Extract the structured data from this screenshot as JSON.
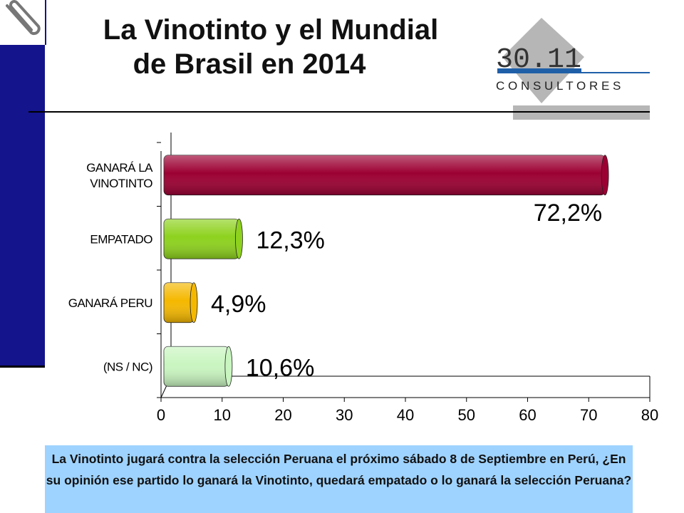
{
  "header": {
    "title_line1": "La  Vinotinto y el Mundial",
    "title_line2": "de Brasil en 2014"
  },
  "logo": {
    "number": "30.11",
    "word": "C O N S U L T O R E S",
    "icon": "paperclip-icon"
  },
  "chart_data": {
    "type": "bar",
    "orientation": "horizontal",
    "categories": [
      "GANARÁ LA VINOTINTO",
      "EMPATADO",
      "GANARÁ PERU",
      "(NS / NC)"
    ],
    "category_lines": [
      [
        "GANARÁ LA",
        "VINOTINTO"
      ],
      [
        "EMPATADO"
      ],
      [
        "GANARÁ PERU"
      ],
      [
        "(NS / NC)"
      ]
    ],
    "values": [
      72.2,
      12.3,
      4.9,
      10.6
    ],
    "value_labels": [
      "72,2%",
      "12,3%",
      "4,9%",
      "10,6%"
    ],
    "colors": [
      "#9c0033",
      "#8ed21e",
      "#f5b800",
      "#c9f5c0"
    ],
    "xlim": [
      0,
      80
    ],
    "xticks": [
      0,
      10,
      20,
      30,
      40,
      50,
      60,
      70,
      80
    ],
    "title": "",
    "xlabel": "",
    "ylabel": "",
    "grid": false,
    "legend": "none"
  },
  "question": {
    "text": "La Vinotinto jugará contra la selección Peruana el próximo sábado 8 de Septiembre en Perú, ¿En su opinión ese partido lo ganará la Vinotinto, quedará empatado o lo ganará la selección  Peruana?"
  }
}
